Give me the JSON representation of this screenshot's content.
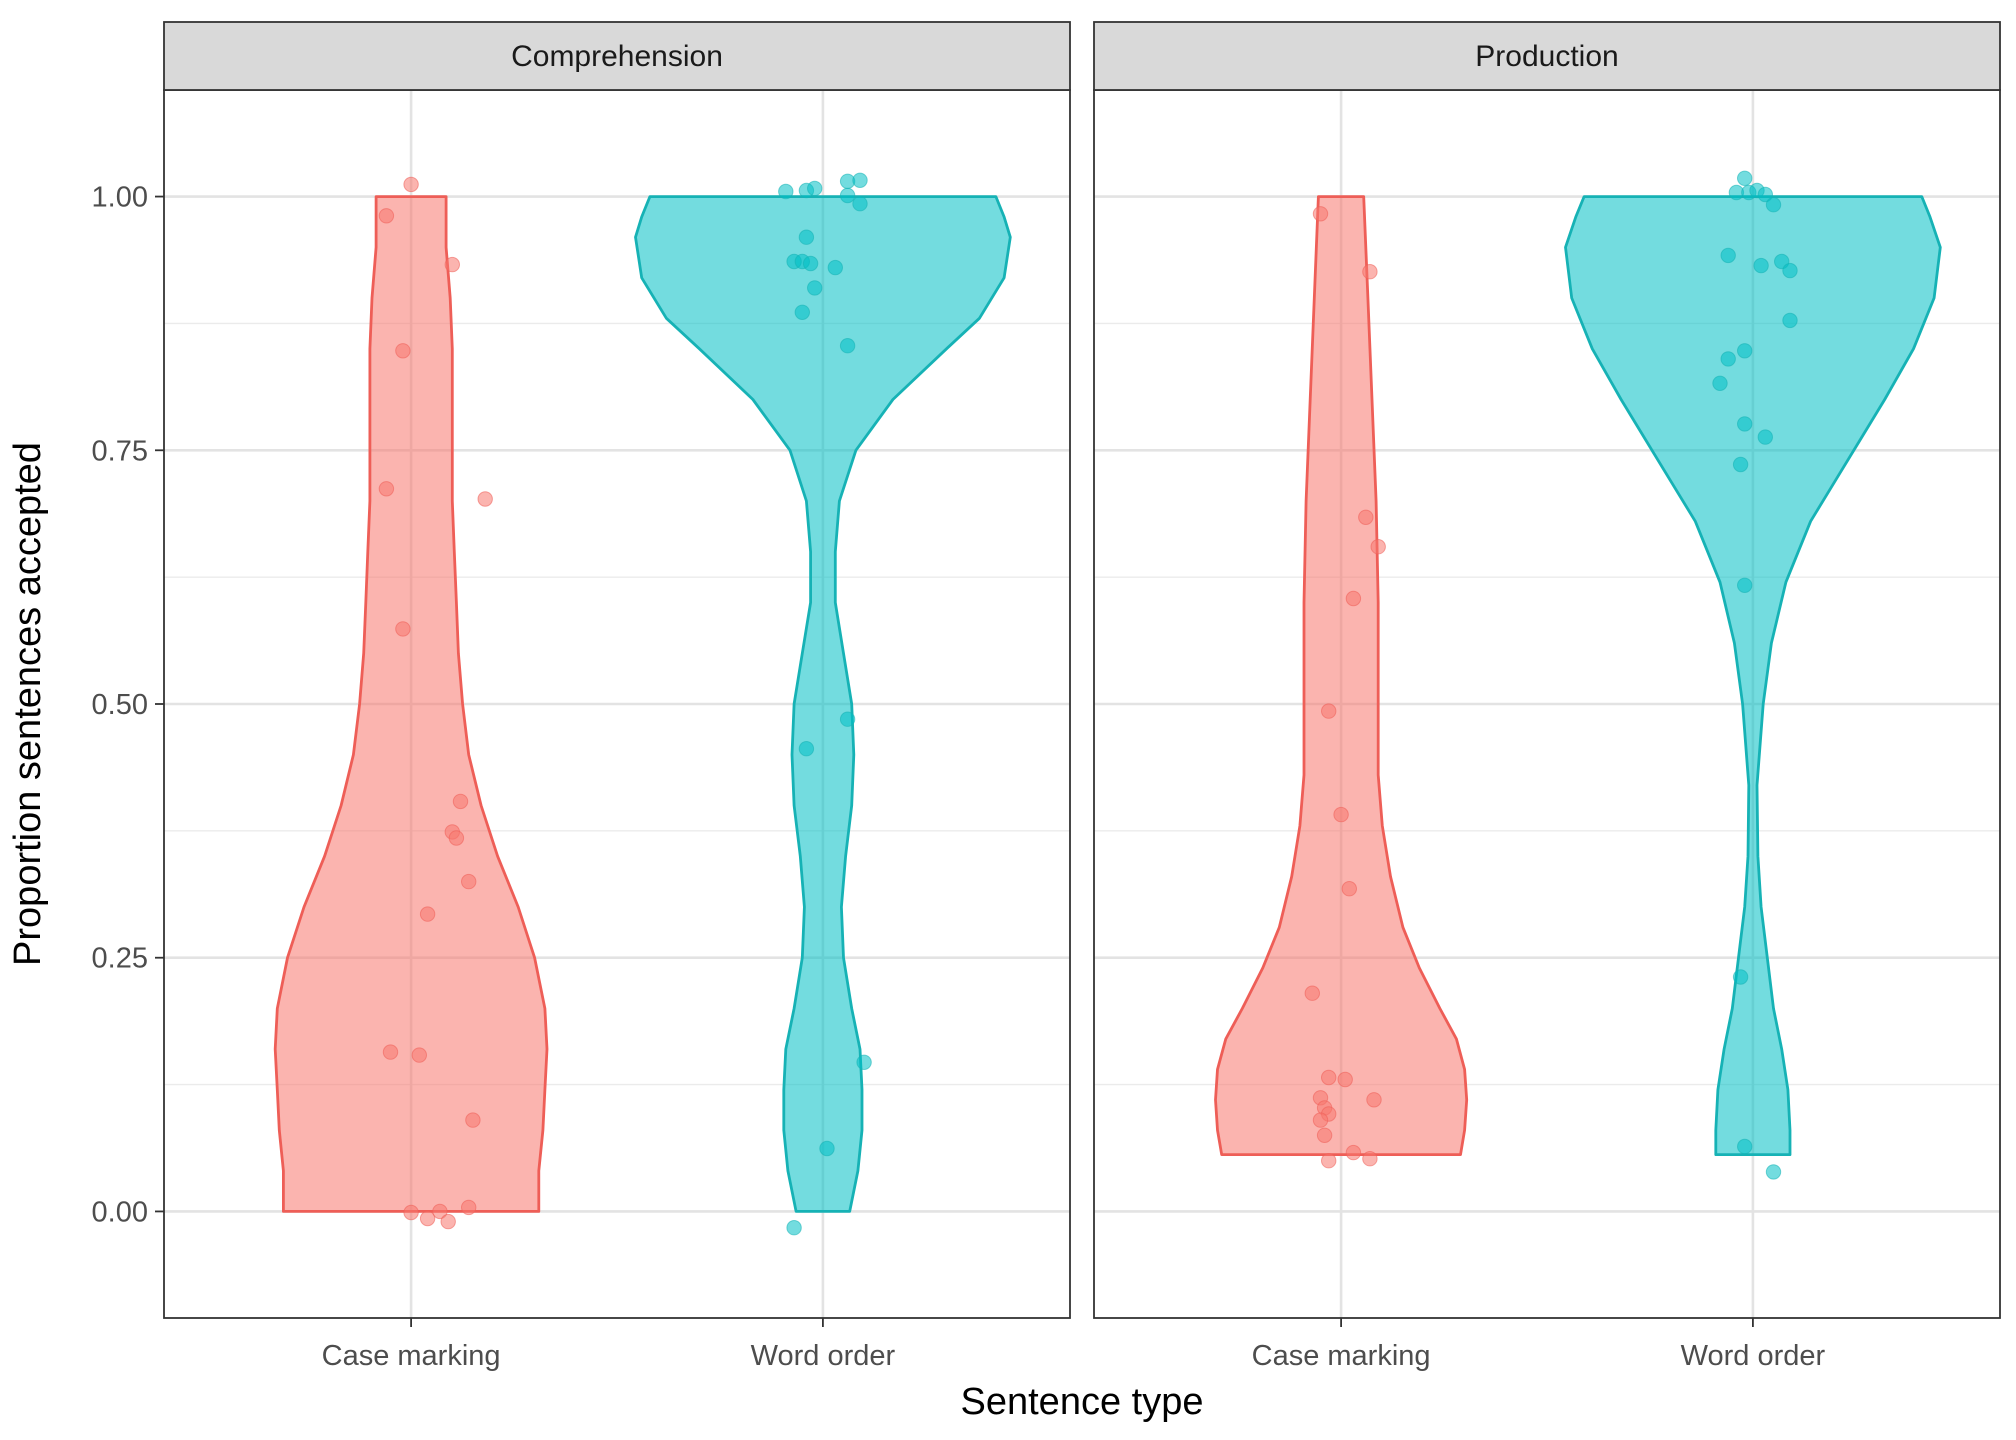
{
  "chart_data": {
    "type": "violin",
    "xlabel": "Sentence type",
    "ylabel": "Proportion sentences accepted",
    "ylim": [
      -0.105,
      1.105
    ],
    "yticks": [
      0.0,
      0.25,
      0.5,
      0.75,
      1.0
    ],
    "ytick_labels": [
      "0.00",
      "0.25",
      "0.50",
      "0.75",
      "1.00"
    ],
    "categories": [
      "Case marking",
      "Word order"
    ],
    "colors": {
      "Case marking": {
        "fill": "#F8766D",
        "stroke": "#EE5E57"
      },
      "Word order": {
        "fill": "#00BFC4",
        "stroke": "#16B2B5"
      }
    },
    "grid": true,
    "legend": "none",
    "panels": [
      {
        "strip_label": "Comprehension",
        "groups": [
          {
            "category": "Case marking",
            "range": [
              0.0,
              1.0
            ],
            "density": [
              [
                0.0,
                0.31
              ],
              [
                0.04,
                0.31
              ],
              [
                0.08,
                0.32
              ],
              [
                0.12,
                0.325
              ],
              [
                0.16,
                0.33
              ],
              [
                0.2,
                0.325
              ],
              [
                0.25,
                0.3
              ],
              [
                0.3,
                0.26
              ],
              [
                0.35,
                0.21
              ],
              [
                0.4,
                0.17
              ],
              [
                0.45,
                0.14
              ],
              [
                0.5,
                0.125
              ],
              [
                0.55,
                0.115
              ],
              [
                0.6,
                0.11
              ],
              [
                0.65,
                0.105
              ],
              [
                0.7,
                0.1
              ],
              [
                0.75,
                0.1
              ],
              [
                0.8,
                0.1
              ],
              [
                0.85,
                0.1
              ],
              [
                0.9,
                0.095
              ],
              [
                0.95,
                0.085
              ],
              [
                1.0,
                0.085
              ]
            ],
            "points": [
              [
                0.0,
                1.012
              ],
              [
                -0.06,
                0.981
              ],
              [
                0.1,
                0.933
              ],
              [
                -0.02,
                0.848
              ],
              [
                -0.06,
                0.712
              ],
              [
                0.18,
                0.702
              ],
              [
                -0.02,
                0.574
              ],
              [
                0.12,
                0.404
              ],
              [
                0.1,
                0.374
              ],
              [
                0.11,
                0.368
              ],
              [
                0.14,
                0.325
              ],
              [
                0.04,
                0.293
              ],
              [
                -0.05,
                0.157
              ],
              [
                0.02,
                0.154
              ],
              [
                0.15,
                0.09
              ],
              [
                0.14,
                0.004
              ],
              [
                0.0,
                -0.001
              ],
              [
                0.04,
                -0.007
              ],
              [
                0.07,
                0.0
              ],
              [
                0.09,
                -0.01
              ]
            ]
          },
          {
            "category": "Word order",
            "range": [
              0.0,
              1.0
            ],
            "density": [
              [
                0.0,
                0.065
              ],
              [
                0.04,
                0.085
              ],
              [
                0.08,
                0.095
              ],
              [
                0.12,
                0.095
              ],
              [
                0.16,
                0.09
              ],
              [
                0.2,
                0.07
              ],
              [
                0.25,
                0.05
              ],
              [
                0.3,
                0.045
              ],
              [
                0.35,
                0.055
              ],
              [
                0.4,
                0.07
              ],
              [
                0.45,
                0.075
              ],
              [
                0.5,
                0.07
              ],
              [
                0.55,
                0.05
              ],
              [
                0.6,
                0.03
              ],
              [
                0.65,
                0.03
              ],
              [
                0.7,
                0.04
              ],
              [
                0.75,
                0.08
              ],
              [
                0.8,
                0.17
              ],
              [
                0.85,
                0.3
              ],
              [
                0.88,
                0.38
              ],
              [
                0.92,
                0.44
              ],
              [
                0.96,
                0.455
              ],
              [
                0.98,
                0.44
              ],
              [
                1.0,
                0.42
              ]
            ],
            "points": [
              [
                -0.09,
                1.005
              ],
              [
                -0.04,
                1.006
              ],
              [
                -0.02,
                1.008
              ],
              [
                0.06,
                1.015
              ],
              [
                0.09,
                1.016
              ],
              [
                0.06,
                1.001
              ],
              [
                0.09,
                0.993
              ],
              [
                -0.04,
                0.96
              ],
              [
                -0.07,
                0.936
              ],
              [
                -0.05,
                0.936
              ],
              [
                -0.03,
                0.934
              ],
              [
                0.03,
                0.93
              ],
              [
                -0.02,
                0.91
              ],
              [
                -0.05,
                0.886
              ],
              [
                0.06,
                0.853
              ],
              [
                0.06,
                0.485
              ],
              [
                -0.04,
                0.456
              ],
              [
                0.1,
                0.147
              ],
              [
                0.01,
                0.062
              ],
              [
                -0.07,
                -0.016
              ]
            ]
          }
        ]
      },
      {
        "strip_label": "Production",
        "groups": [
          {
            "category": "Case marking",
            "range": [
              0.056,
              1.0
            ],
            "density": [
              [
                0.056,
                0.29
              ],
              [
                0.08,
                0.3
              ],
              [
                0.11,
                0.305
              ],
              [
                0.14,
                0.3
              ],
              [
                0.17,
                0.28
              ],
              [
                0.2,
                0.24
              ],
              [
                0.24,
                0.19
              ],
              [
                0.28,
                0.15
              ],
              [
                0.33,
                0.12
              ],
              [
                0.38,
                0.1
              ],
              [
                0.43,
                0.09
              ],
              [
                0.48,
                0.09
              ],
              [
                0.53,
                0.09
              ],
              [
                0.6,
                0.09
              ],
              [
                0.7,
                0.085
              ],
              [
                0.8,
                0.075
              ],
              [
                0.9,
                0.065
              ],
              [
                1.0,
                0.055
              ]
            ],
            "points": [
              [
                -0.05,
                0.983
              ],
              [
                0.07,
                0.926
              ],
              [
                0.06,
                0.684
              ],
              [
                0.09,
                0.655
              ],
              [
                0.03,
                0.604
              ],
              [
                -0.03,
                0.493
              ],
              [
                0.0,
                0.391
              ],
              [
                0.02,
                0.318
              ],
              [
                -0.07,
                0.215
              ],
              [
                -0.03,
                0.132
              ],
              [
                0.01,
                0.13
              ],
              [
                -0.05,
                0.112
              ],
              [
                0.08,
                0.11
              ],
              [
                -0.04,
                0.102
              ],
              [
                -0.03,
                0.096
              ],
              [
                -0.05,
                0.09
              ],
              [
                -0.04,
                0.075
              ],
              [
                0.03,
                0.058
              ],
              [
                0.07,
                0.052
              ],
              [
                -0.03,
                0.05
              ]
            ]
          },
          {
            "category": "Word order",
            "range": [
              0.056,
              1.0
            ],
            "density": [
              [
                0.056,
                0.09
              ],
              [
                0.08,
                0.09
              ],
              [
                0.12,
                0.085
              ],
              [
                0.16,
                0.07
              ],
              [
                0.2,
                0.05
              ],
              [
                0.25,
                0.035
              ],
              [
                0.3,
                0.02
              ],
              [
                0.35,
                0.012
              ],
              [
                0.42,
                0.01
              ],
              [
                0.5,
                0.025
              ],
              [
                0.56,
                0.045
              ],
              [
                0.62,
                0.08
              ],
              [
                0.68,
                0.14
              ],
              [
                0.72,
                0.2
              ],
              [
                0.76,
                0.26
              ],
              [
                0.8,
                0.32
              ],
              [
                0.85,
                0.39
              ],
              [
                0.9,
                0.44
              ],
              [
                0.95,
                0.455
              ],
              [
                0.98,
                0.43
              ],
              [
                1.0,
                0.41
              ]
            ],
            "points": [
              [
                -0.04,
                1.004
              ],
              [
                -0.02,
                1.018
              ],
              [
                -0.01,
                1.004
              ],
              [
                0.01,
                1.006
              ],
              [
                0.03,
                1.002
              ],
              [
                0.05,
                0.992
              ],
              [
                -0.06,
                0.942
              ],
              [
                0.07,
                0.936
              ],
              [
                0.02,
                0.932
              ],
              [
                0.09,
                0.927
              ],
              [
                0.09,
                0.878
              ],
              [
                -0.02,
                0.848
              ],
              [
                -0.06,
                0.84
              ],
              [
                -0.08,
                0.816
              ],
              [
                -0.02,
                0.776
              ],
              [
                0.03,
                0.763
              ],
              [
                -0.03,
                0.736
              ],
              [
                -0.02,
                0.617
              ],
              [
                -0.03,
                0.231
              ],
              [
                -0.02,
                0.064
              ],
              [
                0.05,
                0.039
              ]
            ]
          }
        ]
      }
    ]
  }
}
